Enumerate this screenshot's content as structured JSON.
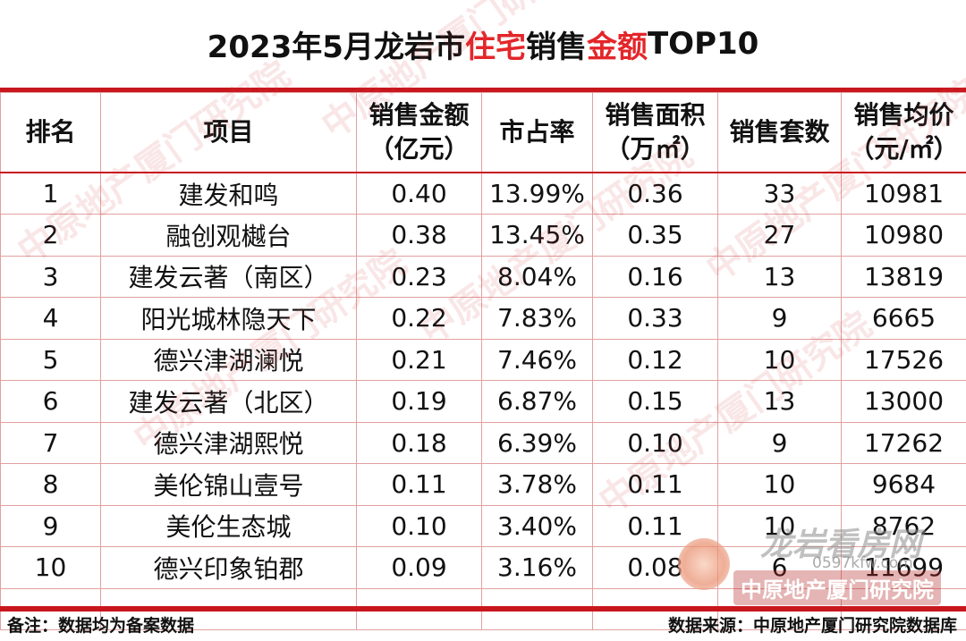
{
  "title": {
    "p1": "2023年5月龙岩市",
    "p2": "住宅",
    "p3": "销售",
    "p4": "金额",
    "p5": "TOP10"
  },
  "headers": [
    {
      "l1": "排名",
      "l2": ""
    },
    {
      "l1": "项目",
      "l2": ""
    },
    {
      "l1": "销售金额",
      "l2": "（亿元）"
    },
    {
      "l1": "市占率",
      "l2": ""
    },
    {
      "l1": "销售面积",
      "l2": "（万㎡）"
    },
    {
      "l1": "销售套数",
      "l2": ""
    },
    {
      "l1": "销售均价",
      "l2": "（元/㎡）"
    }
  ],
  "rows": [
    {
      "rank": "1",
      "project": "建发和鸣",
      "amount": "0.40",
      "share": "13.99%",
      "area": "0.36",
      "units": "33",
      "price": "10981"
    },
    {
      "rank": "2",
      "project": "融创观樾台",
      "amount": "0.38",
      "share": "13.45%",
      "area": "0.35",
      "units": "27",
      "price": "10980"
    },
    {
      "rank": "3",
      "project": "建发云著（南区）",
      "amount": "0.23",
      "share": "8.04%",
      "area": "0.16",
      "units": "13",
      "price": "13819"
    },
    {
      "rank": "4",
      "project": "阳光城林隐天下",
      "amount": "0.22",
      "share": "7.83%",
      "area": "0.33",
      "units": "9",
      "price": "6665"
    },
    {
      "rank": "5",
      "project": "德兴津湖澜悦",
      "amount": "0.21",
      "share": "7.46%",
      "area": "0.12",
      "units": "10",
      "price": "17526"
    },
    {
      "rank": "6",
      "project": "建发云著（北区）",
      "amount": "0.19",
      "share": "6.87%",
      "area": "0.15",
      "units": "13",
      "price": "13000"
    },
    {
      "rank": "7",
      "project": "德兴津湖熙悦",
      "amount": "0.18",
      "share": "6.39%",
      "area": "0.10",
      "units": "9",
      "price": "17262"
    },
    {
      "rank": "8",
      "project": "美伦锦山壹号",
      "amount": "0.11",
      "share": "3.78%",
      "area": "0.11",
      "units": "10",
      "price": "9684"
    },
    {
      "rank": "9",
      "project": "美伦生态城",
      "amount": "0.10",
      "share": "3.40%",
      "area": "0.11",
      "units": "10",
      "price": "8762"
    },
    {
      "rank": "10",
      "project": "德兴印象铂郡",
      "amount": "0.09",
      "share": "3.16%",
      "area": "0.08",
      "units": "6",
      "price": "11699"
    }
  ],
  "footer": {
    "note": "备注：数据均为备案数据",
    "source": "数据来源：中原地产厦门研究院数据库"
  },
  "watermark": {
    "text": "中原地产厦门研究院"
  },
  "logo": {
    "brand": "龙岩看房网",
    "domain": "0597kfw.com",
    "org": "中原地产厦门研究院"
  },
  "colors": {
    "accent": "#c8161d",
    "highlight": "#e3262a"
  }
}
